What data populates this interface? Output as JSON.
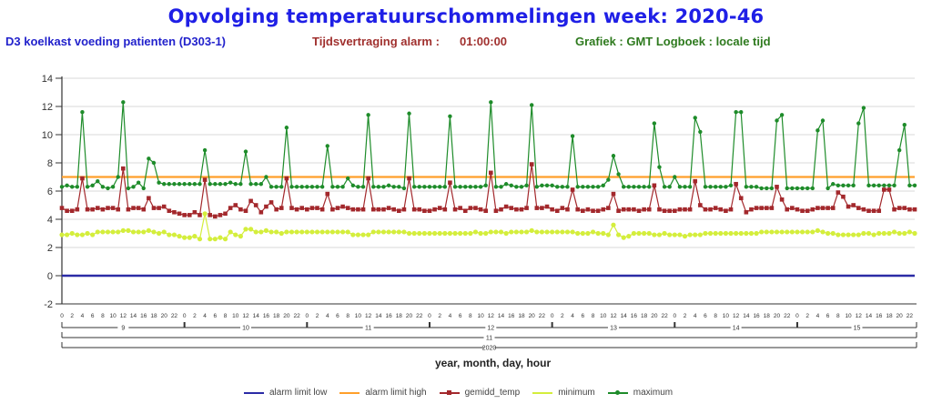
{
  "header": {
    "title": "Opvolging temperatuurschommelingen week: 2020-46",
    "device": "D3 koelkast voeding patienten (D303-1)",
    "delay_label": "Tijdsvertraging alarm :",
    "delay_value": "01:00:00",
    "timezone_note": "Grafiek : GMT  Logboek : locale tijd"
  },
  "colors": {
    "alarm_limit_low": "#2b2ba6",
    "alarm_limit_high": "#ff9f2a",
    "gemidd_temp": "#a3282c",
    "minimum": "#d4ee3c",
    "maximum": "#1e8c2a",
    "title": "#1f1fe6"
  },
  "chart_data": {
    "type": "line",
    "title": "Opvolging temperatuurschommelingen week: 2020-46",
    "xlabel": "year, month, day, hour",
    "ylabel": "",
    "ylim": [
      -2,
      14
    ],
    "yticks": [
      "14",
      "12",
      "10",
      "8",
      "6",
      "4",
      "2",
      "0",
      "-2"
    ],
    "grid": true,
    "legend_position": "bottom",
    "x_hour_ticks": [
      "0",
      "2",
      "4",
      "6",
      "8",
      "10",
      "12",
      "14",
      "16",
      "18",
      "20",
      "22"
    ],
    "x_days": [
      "9",
      "10",
      "11",
      "12",
      "13",
      "14",
      "15"
    ],
    "x_month": "11",
    "x_year": "2020",
    "points_per_day": 24,
    "series": [
      {
        "name": "alarm limit low",
        "key": "alarm_limit_low",
        "constant": 0
      },
      {
        "name": "alarm limit high",
        "key": "alarm_limit_high",
        "constant": 7
      },
      {
        "name": "gemidd_temp",
        "key": "gemidd_temp",
        "values": [
          4.8,
          4.6,
          4.6,
          4.7,
          6.9,
          4.7,
          4.7,
          4.8,
          4.7,
          4.8,
          4.8,
          4.7,
          7.6,
          4.7,
          4.8,
          4.8,
          4.7,
          5.5,
          4.8,
          4.8,
          4.9,
          4.6,
          4.5,
          4.4,
          4.3,
          4.3,
          4.5,
          4.3,
          6.8,
          4.3,
          4.2,
          4.3,
          4.4,
          4.8,
          5.0,
          4.7,
          4.6,
          5.3,
          5.0,
          4.5,
          4.9,
          5.2,
          4.7,
          4.8,
          6.9,
          4.8,
          4.7,
          4.8,
          4.7,
          4.8,
          4.8,
          4.7,
          5.8,
          4.7,
          4.8,
          4.9,
          4.8,
          4.7,
          4.7,
          4.7,
          6.9,
          4.7,
          4.7,
          4.7,
          4.8,
          4.7,
          4.6,
          4.7,
          6.9,
          4.7,
          4.7,
          4.6,
          4.6,
          4.7,
          4.8,
          4.7,
          6.6,
          4.7,
          4.8,
          4.6,
          4.8,
          4.8,
          4.7,
          4.6,
          7.3,
          4.6,
          4.7,
          4.9,
          4.8,
          4.7,
          4.7,
          4.8,
          7.9,
          4.8,
          4.8,
          4.9,
          4.7,
          4.6,
          4.8,
          4.7,
          6.1,
          4.7,
          4.6,
          4.7,
          4.6,
          4.6,
          4.7,
          4.8,
          5.8,
          4.6,
          4.7,
          4.7,
          4.7,
          4.6,
          4.7,
          4.7,
          6.4,
          4.7,
          4.6,
          4.6,
          4.6,
          4.7,
          4.7,
          4.7,
          6.7,
          5.0,
          4.7,
          4.7,
          4.8,
          4.7,
          4.6,
          4.7,
          6.5,
          5.5,
          4.5,
          4.7,
          4.8,
          4.8,
          4.8,
          4.8,
          6.3,
          5.4,
          4.7,
          4.8,
          4.7,
          4.6,
          4.6,
          4.7,
          4.8,
          4.8,
          4.8,
          4.8,
          5.9,
          5.6,
          4.9,
          5.0,
          4.8,
          4.7,
          4.6,
          4.6,
          4.6,
          6.1,
          6.1,
          4.7,
          4.8,
          4.8,
          4.7,
          4.7
        ]
      },
      {
        "name": "minimum",
        "key": "minimum",
        "values": [
          2.9,
          2.9,
          3.0,
          2.9,
          2.9,
          3.0,
          2.9,
          3.1,
          3.1,
          3.1,
          3.1,
          3.1,
          3.2,
          3.2,
          3.1,
          3.1,
          3.1,
          3.2,
          3.1,
          3.0,
          3.1,
          2.9,
          2.9,
          2.8,
          2.7,
          2.7,
          2.8,
          2.6,
          4.4,
          2.6,
          2.6,
          2.7,
          2.6,
          3.1,
          2.9,
          2.8,
          3.3,
          3.3,
          3.1,
          3.1,
          3.2,
          3.1,
          3.1,
          3.0,
          3.1,
          3.1,
          3.1,
          3.1,
          3.1,
          3.1,
          3.1,
          3.1,
          3.1,
          3.1,
          3.1,
          3.1,
          3.1,
          2.9,
          2.9,
          2.9,
          2.9,
          3.1,
          3.1,
          3.1,
          3.1,
          3.1,
          3.1,
          3.1,
          3.0,
          3.0,
          3.0,
          3.0,
          3.0,
          3.0,
          3.0,
          3.0,
          3.0,
          3.0,
          3.0,
          3.0,
          3.0,
          3.1,
          3.0,
          3.0,
          3.1,
          3.1,
          3.1,
          3.0,
          3.1,
          3.1,
          3.1,
          3.1,
          3.2,
          3.1,
          3.1,
          3.1,
          3.1,
          3.1,
          3.1,
          3.1,
          3.1,
          3.0,
          3.0,
          3.0,
          3.1,
          3.0,
          3.0,
          2.9,
          3.6,
          2.9,
          2.7,
          2.8,
          3.0,
          3.0,
          3.0,
          3.0,
          2.9,
          2.9,
          3.0,
          2.9,
          2.9,
          2.9,
          2.8,
          2.9,
          2.9,
          2.9,
          3.0,
          3.0,
          3.0,
          3.0,
          3.0,
          3.0,
          3.0,
          3.0,
          3.0,
          3.0,
          3.0,
          3.1,
          3.1,
          3.1,
          3.1,
          3.1,
          3.1,
          3.1,
          3.1,
          3.1,
          3.1,
          3.1,
          3.2,
          3.1,
          3.0,
          3.0,
          2.9,
          2.9,
          2.9,
          2.9,
          2.9,
          3.0,
          3.0,
          2.9,
          3.0,
          3.0,
          3.0,
          3.1,
          3.0,
          3.0,
          3.1,
          3.0
        ]
      },
      {
        "name": "maximum",
        "key": "maximum",
        "values": [
          6.3,
          6.4,
          6.3,
          6.3,
          11.6,
          6.3,
          6.4,
          6.7,
          6.3,
          6.2,
          6.3,
          7.0,
          12.3,
          6.2,
          6.3,
          6.6,
          6.2,
          8.3,
          8.0,
          6.6,
          6.5,
          6.5,
          6.5,
          6.5,
          6.5,
          6.5,
          6.5,
          6.5,
          8.9,
          6.5,
          6.5,
          6.5,
          6.5,
          6.6,
          6.5,
          6.5,
          8.8,
          6.5,
          6.5,
          6.5,
          7.0,
          6.3,
          6.3,
          6.3,
          10.5,
          6.3,
          6.3,
          6.3,
          6.3,
          6.3,
          6.3,
          6.3,
          9.2,
          6.3,
          6.3,
          6.3,
          6.9,
          6.4,
          6.3,
          6.3,
          11.4,
          6.3,
          6.3,
          6.3,
          6.4,
          6.3,
          6.3,
          6.2,
          11.5,
          6.3,
          6.3,
          6.3,
          6.3,
          6.3,
          6.3,
          6.3,
          11.3,
          6.3,
          6.3,
          6.3,
          6.3,
          6.3,
          6.3,
          6.4,
          12.3,
          6.3,
          6.3,
          6.5,
          6.4,
          6.3,
          6.3,
          6.4,
          12.1,
          6.3,
          6.4,
          6.4,
          6.4,
          6.3,
          6.3,
          6.3,
          9.9,
          6.3,
          6.3,
          6.3,
          6.3,
          6.3,
          6.4,
          6.8,
          8.5,
          7.2,
          6.3,
          6.3,
          6.3,
          6.3,
          6.3,
          6.3,
          10.8,
          7.7,
          6.3,
          6.3,
          7.0,
          6.3,
          6.3,
          6.3,
          11.2,
          10.2,
          6.3,
          6.3,
          6.3,
          6.3,
          6.3,
          6.4,
          11.6,
          11.6,
          6.3,
          6.3,
          6.3,
          6.2,
          6.2,
          6.2,
          11.0,
          11.4,
          6.2,
          6.2,
          6.2,
          6.2,
          6.2,
          6.2,
          10.3,
          11.0,
          6.2,
          6.5,
          6.4,
          6.4,
          6.4,
          6.4,
          10.8,
          11.9,
          6.4,
          6.4,
          6.4,
          6.4,
          6.4,
          6.4,
          8.9,
          10.7,
          6.4,
          6.4
        ]
      }
    ]
  },
  "legend": {
    "items": [
      {
        "label": "alarm limit low",
        "key": "alarm_limit_low",
        "marker": false
      },
      {
        "label": "alarm limit high",
        "key": "alarm_limit_high",
        "marker": false
      },
      {
        "label": "gemidd_temp",
        "key": "gemidd_temp",
        "marker": true
      },
      {
        "label": "minimum",
        "key": "minimum",
        "marker": false
      },
      {
        "label": "maximum",
        "key": "maximum",
        "marker": true
      }
    ]
  }
}
